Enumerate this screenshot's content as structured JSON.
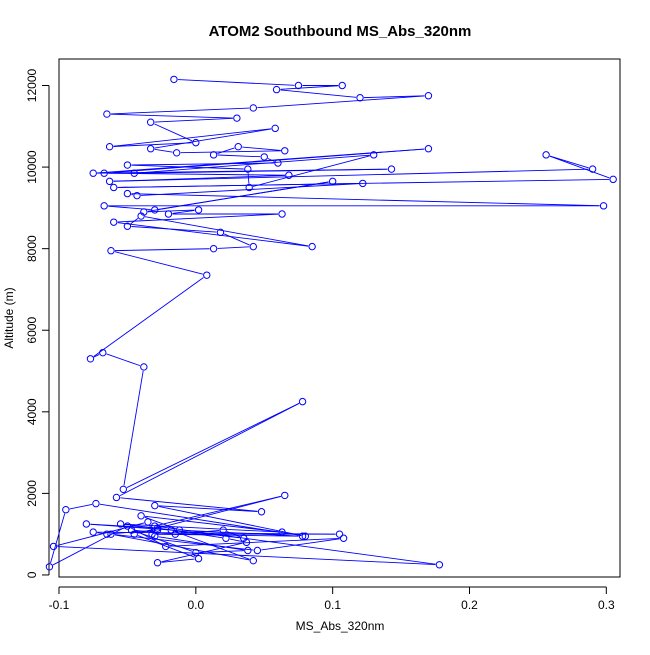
{
  "chart_data": {
    "type": "line",
    "title": "ATOM2 Southbound MS_Abs_320nm",
    "xlabel": "MS_Abs_320nm",
    "ylabel": "Altitude (m)",
    "xlim": [
      -0.1,
      0.31
    ],
    "ylim": [
      -50,
      12650
    ],
    "x_ticks": [
      -0.1,
      0.0,
      0.1,
      0.2,
      0.3
    ],
    "x_tick_labels": [
      "-0.1",
      "0.0",
      "0.1",
      "0.2",
      "0.3"
    ],
    "y_ticks": [
      0,
      2000,
      4000,
      6000,
      8000,
      10000,
      12000
    ],
    "y_tick_labels": [
      "0",
      "2000",
      "4000",
      "6000",
      "8000",
      "10000",
      "12000"
    ],
    "grid": false,
    "markers": "open-circle",
    "line_color": "#0000ff",
    "series": [
      {
        "x": [
          -0.016,
          0.075,
          0.107,
          0.059,
          0.12,
          0.17,
          0.042,
          -0.065,
          0.03,
          -0.033,
          0.0,
          -0.063,
          0.058,
          -0.033,
          -0.014,
          0.065,
          0.031,
          0.013,
          0.05,
          0.06,
          -0.05,
          0.038,
          0.039,
          0.13,
          -0.045,
          0.143,
          -0.075,
          0.17,
          -0.067,
          0.068,
          -0.063,
          0.29,
          0.256,
          0.305,
          -0.06,
          0.122,
          -0.043,
          -0.05,
          0.298,
          -0.067,
          -0.03,
          0.1,
          -0.038,
          0.002,
          -0.02,
          0.063,
          -0.06,
          0.085,
          -0.04,
          -0.05,
          0.018,
          0.042,
          0.013,
          -0.062,
          0.008,
          -0.077,
          -0.068,
          -0.038,
          -0.053,
          0.078,
          -0.058,
          0.048,
          -0.03,
          0.08,
          -0.073,
          -0.095,
          -0.107,
          -0.05,
          -0.022,
          0.108,
          0.045,
          -0.062,
          0.042,
          -0.018,
          -0.08,
          -0.028,
          0.022,
          0.037,
          -0.028,
          0.002,
          -0.045,
          0.065,
          -0.03,
          0.178,
          -0.104,
          -0.035,
          -0.03,
          0.038,
          0.0,
          -0.047,
          -0.015,
          0.02,
          0.035,
          -0.055,
          0.063,
          -0.04,
          -0.012,
          0.078,
          -0.032,
          0.105,
          -0.075,
          -0.065,
          -0.028
        ],
        "y": [
          12150,
          12000,
          12000,
          11900,
          11700,
          11750,
          11450,
          11300,
          11200,
          11100,
          10600,
          10500,
          10950,
          10450,
          10350,
          10400,
          10500,
          10300,
          10250,
          10100,
          10050,
          9950,
          9500,
          10300,
          9850,
          9950,
          9850,
          10450,
          9850,
          9800,
          9650,
          9950,
          10300,
          9700,
          9500,
          9600,
          9300,
          9350,
          9050,
          9050,
          8950,
          9650,
          8900,
          8950,
          8850,
          8850,
          8650,
          8050,
          8800,
          8550,
          8400,
          8050,
          8000,
          7950,
          7350,
          5300,
          5450,
          5100,
          2100,
          4250,
          1900,
          1550,
          1700,
          950,
          1750,
          1600,
          200,
          1200,
          700,
          900,
          600,
          1000,
          350,
          1100,
          1250,
          1150,
          900,
          800,
          300,
          400,
          1000,
          1950,
          1200,
          250,
          700,
          1300,
          950,
          600,
          550,
          1100,
          1000,
          1100,
          900,
          1250,
          1050,
          1450,
          1100,
          950,
          1000,
          1000,
          1050,
          1000,
          1100
        ]
      }
    ]
  }
}
